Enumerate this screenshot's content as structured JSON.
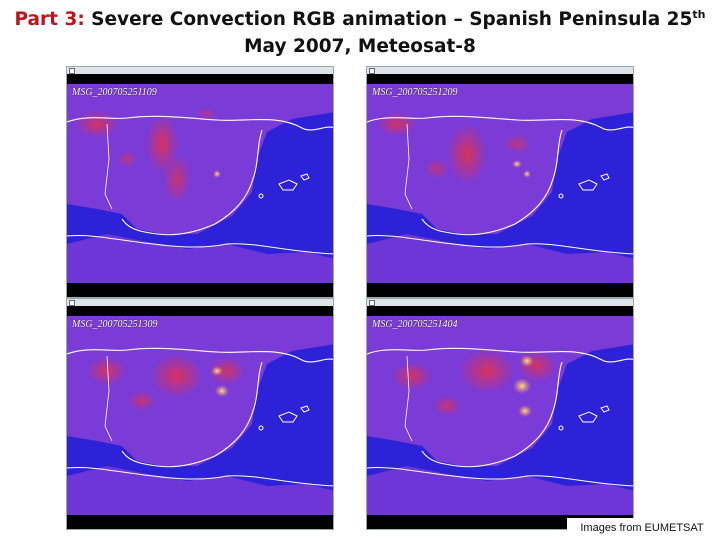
{
  "title": {
    "part": "Part 3:",
    "text": " Severe Convection RGB animation – Spanish Peninsula 25",
    "sup": "th",
    "line2": "May 2007, Meteosat-8"
  },
  "panels": [
    {
      "label": "MSG_200705251109"
    },
    {
      "label": "MSG_200705251209"
    },
    {
      "label": "MSG_200705251309"
    },
    {
      "label": "MSG_200705251404"
    }
  ],
  "credit": "Images from EUMETSAT",
  "colors": {
    "title_accent": "#c0121c",
    "sea_blue": "#2d22d8",
    "land_purple": "#8a3fd6",
    "convection_red": "#e8304a",
    "overshoot_yellow": "#ffe27a"
  }
}
